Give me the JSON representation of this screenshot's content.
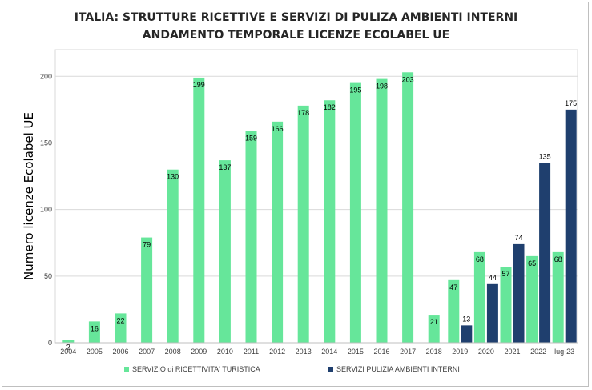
{
  "title_line1": "ITALIA:  STRUTTURE RICETTIVE E SERVIZI DI PULIZA AMBIENTI INTERNI",
  "title_line2": "ANDAMENTO TEMPORALE LICENZE ECOLABEL UE",
  "chart_data": {
    "type": "bar",
    "title": "ITALIA:  STRUTTURE RICETTIVE E SERVIZI DI PULIZA AMBIENTI INTERNI ANDAMENTO TEMPORALE LICENZE ECOLABEL UE",
    "xlabel": "",
    "ylabel": "Numero licenze Ecolabel UE",
    "ylim": [
      0,
      220
    ],
    "yticks": [
      0,
      50,
      100,
      150,
      200
    ],
    "grid": true,
    "legend_position": "bottom",
    "categories": [
      "2004",
      "2005",
      "2006",
      "2007",
      "2008",
      "2009",
      "2010",
      "2011",
      "2012",
      "2013",
      "2014",
      "2015",
      "2016",
      "2017",
      "2018",
      "2019",
      "2020",
      "2021",
      "2022",
      "lug-23"
    ],
    "series": [
      {
        "name": "SERVIZIO di RICETTIVITA' TURISTICA",
        "color": "#66e69a",
        "values": [
          2,
          16,
          22,
          79,
          130,
          199,
          137,
          159,
          166,
          178,
          182,
          195,
          198,
          203,
          21,
          47,
          68,
          57,
          65,
          68
        ],
        "labels": [
          "2",
          "16",
          "22",
          "79",
          "130",
          "199",
          "137",
          "159",
          "166",
          "178",
          "182",
          "195",
          "198",
          "203",
          "21",
          "47",
          "68",
          "57",
          "65",
          "68"
        ]
      },
      {
        "name": "SERVIZI PULIZIA AMBIENTI INTERNI",
        "color": "#1f3f6e",
        "values": [
          null,
          null,
          null,
          null,
          null,
          null,
          null,
          null,
          null,
          null,
          null,
          null,
          null,
          null,
          null,
          13,
          44,
          74,
          135,
          175
        ],
        "labels": [
          "",
          "",
          "",
          "",
          "",
          "",
          "",
          "",
          "",
          "",
          "",
          "",
          "",
          "",
          "",
          "13",
          "44",
          "74",
          "135",
          "175"
        ]
      }
    ]
  }
}
